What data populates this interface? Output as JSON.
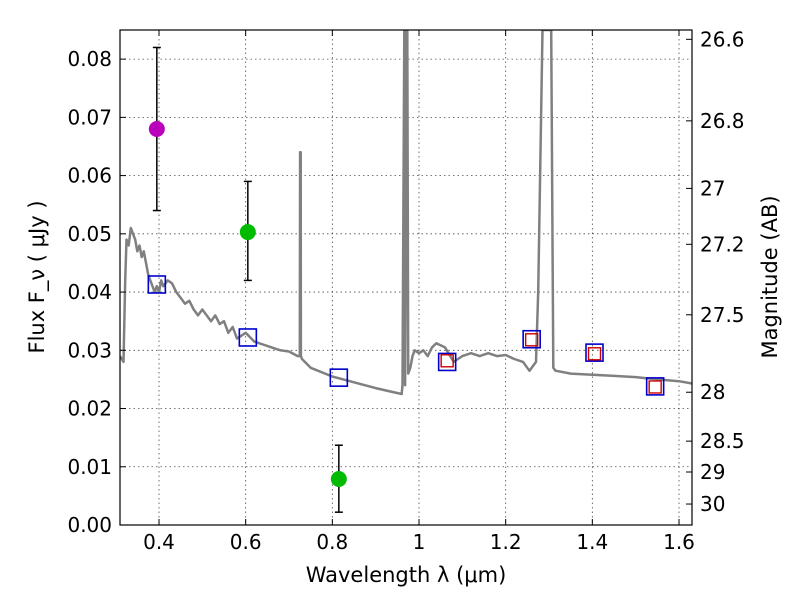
{
  "chart_data": {
    "type": "scatter",
    "xlabel": "Wavelength  λ (μm)",
    "ylabel": "Flux  F_ν  ( μJy )",
    "y2label": "Magnitude (AB)",
    "xlim": [
      0.31,
      1.63
    ],
    "ylim": [
      0.0,
      0.085
    ],
    "grid": true,
    "x_ticks": [
      0.4,
      0.6,
      0.8,
      1.0,
      1.2,
      1.4,
      1.6
    ],
    "x_tick_labels": [
      "0.4",
      "0.6",
      "0.8",
      "1",
      "1.2",
      "1.4",
      "1.6"
    ],
    "y_ticks": [
      0.0,
      0.01,
      0.02,
      0.03,
      0.04,
      0.05,
      0.06,
      0.07,
      0.08
    ],
    "y_tick_labels": [
      "0.00",
      "0.01",
      "0.02",
      "0.03",
      "0.04",
      "0.05",
      "0.06",
      "0.07",
      "0.08"
    ],
    "mag_ticks": [
      {
        "flux": 0.0834,
        "label": "26.6"
      },
      {
        "flux": 0.0694,
        "label": "26.8"
      },
      {
        "flux": 0.0578,
        "label": "27"
      },
      {
        "flux": 0.0482,
        "label": "27.2"
      },
      {
        "flux": 0.0361,
        "label": "27.5"
      },
      {
        "flux": 0.0228,
        "label": "28"
      },
      {
        "flux": 0.0144,
        "label": "28.5"
      },
      {
        "flux": 0.0091,
        "label": "29"
      },
      {
        "flux": 0.0036,
        "label": "30"
      }
    ],
    "observed_points": [
      {
        "x": 0.395,
        "y": 0.068,
        "err_low": 0.054,
        "err_high": 0.082,
        "color": "#bb00bb"
      },
      {
        "x": 0.605,
        "y": 0.0503,
        "err_low": 0.042,
        "err_high": 0.059,
        "color": "#00bb00"
      },
      {
        "x": 0.815,
        "y": 0.0079,
        "err_low": 0.0022,
        "err_high": 0.0137,
        "color": "#00bb00"
      }
    ],
    "model_blue_squares": {
      "x": [
        0.395,
        0.605,
        0.815,
        1.065,
        1.26,
        1.405,
        1.545
      ],
      "y": [
        0.0413,
        0.0322,
        0.0253,
        0.028,
        0.0319,
        0.0296,
        0.0238
      ],
      "color": "#0000cc"
    },
    "model_red_squares": {
      "x": [
        1.065,
        1.26,
        1.405,
        1.545
      ],
      "y": [
        0.0282,
        0.0318,
        0.0294,
        0.0237
      ],
      "color": "#cc0000"
    },
    "sed_curve": {
      "color": "#808080",
      "x": [
        0.31,
        0.318,
        0.322,
        0.325,
        0.33,
        0.335,
        0.34,
        0.345,
        0.35,
        0.355,
        0.36,
        0.365,
        0.37,
        0.375,
        0.38,
        0.385,
        0.39,
        0.395,
        0.4,
        0.405,
        0.41,
        0.42,
        0.43,
        0.44,
        0.45,
        0.46,
        0.47,
        0.48,
        0.49,
        0.5,
        0.51,
        0.52,
        0.53,
        0.54,
        0.55,
        0.56,
        0.57,
        0.58,
        0.6,
        0.62,
        0.64,
        0.66,
        0.68,
        0.7,
        0.72,
        0.725,
        0.7255,
        0.727,
        0.7275,
        0.73,
        0.75,
        0.8,
        0.85,
        0.9,
        0.93,
        0.96,
        0.962,
        0.966,
        0.967,
        0.968,
        0.972,
        0.973,
        0.975,
        0.98,
        0.985,
        0.99,
        1.0,
        1.01,
        1.02,
        1.03,
        1.04,
        1.06,
        1.08,
        1.1,
        1.12,
        1.14,
        1.16,
        1.18,
        1.2,
        1.22,
        1.24,
        1.25,
        1.255,
        1.27,
        1.275,
        1.285,
        1.295,
        1.3,
        1.305,
        1.31,
        1.315,
        1.35,
        1.4,
        1.45,
        1.5,
        1.55,
        1.6,
        1.63
      ],
      "y": [
        0.029,
        0.028,
        0.042,
        0.049,
        0.048,
        0.051,
        0.05,
        0.049,
        0.047,
        0.048,
        0.046,
        0.047,
        0.045,
        0.043,
        0.042,
        0.041,
        0.04,
        0.041,
        0.04,
        0.042,
        0.041,
        0.042,
        0.0415,
        0.04,
        0.039,
        0.038,
        0.0385,
        0.037,
        0.036,
        0.037,
        0.036,
        0.035,
        0.036,
        0.0345,
        0.035,
        0.033,
        0.034,
        0.032,
        0.033,
        0.0315,
        0.031,
        0.0305,
        0.03,
        0.0298,
        0.029,
        0.029,
        0.064,
        0.064,
        0.029,
        0.0285,
        0.027,
        0.0255,
        0.0245,
        0.0235,
        0.023,
        0.0225,
        0.024,
        0.085,
        0.085,
        0.024,
        0.085,
        0.085,
        0.026,
        0.027,
        0.029,
        0.03,
        0.0295,
        0.03,
        0.029,
        0.0305,
        0.0312,
        0.0305,
        0.028,
        0.029,
        0.0295,
        0.029,
        0.0295,
        0.029,
        0.0292,
        0.0285,
        0.028,
        0.027,
        0.0265,
        0.028,
        0.04,
        0.085,
        0.085,
        0.085,
        0.085,
        0.027,
        0.0265,
        0.026,
        0.0258,
        0.0256,
        0.0254,
        0.025,
        0.0247,
        0.0243
      ]
    }
  }
}
